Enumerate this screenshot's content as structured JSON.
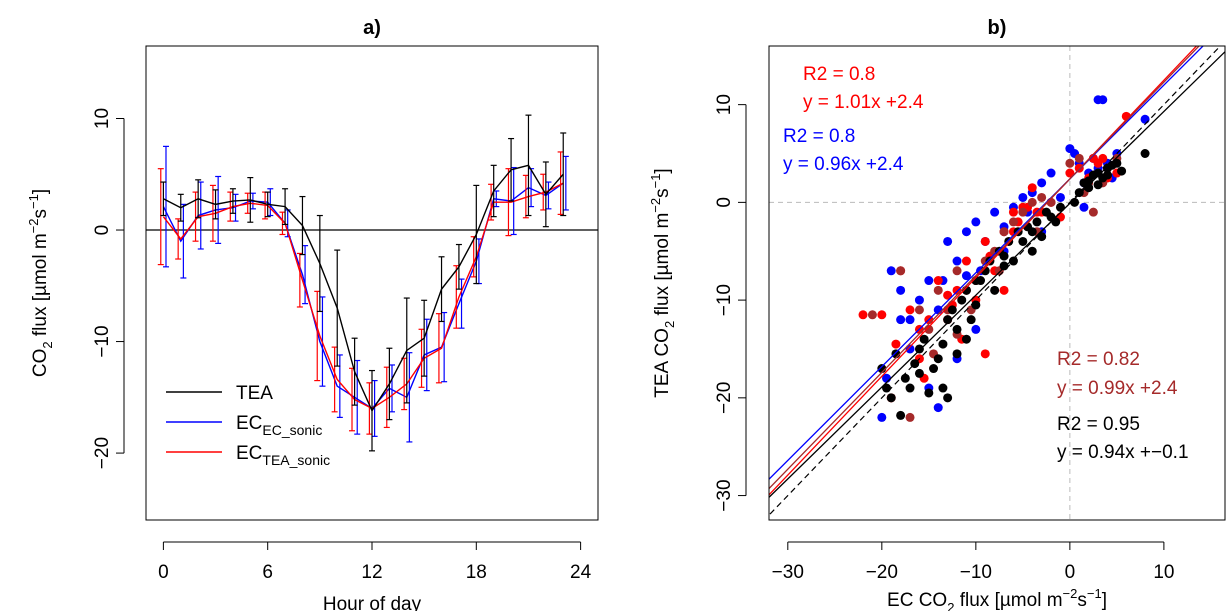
{
  "chart_data": [
    {
      "type": "line",
      "panel_label": "a)",
      "xlabel": "Hour of day",
      "ylabel": "CO2 flux [µmol m-2s-1]",
      "ylabel_parts": {
        "main": "CO",
        "sub": "2",
        "rest": " flux [µmol m",
        "sup1": "−2",
        "mid": "s",
        "sup2": "−1",
        "end": "]"
      },
      "xlim": [
        -1,
        25
      ],
      "ylim": [
        -26,
        16.5
      ],
      "x_ticks": [
        0,
        6,
        12,
        18,
        24
      ],
      "y_ticks": [
        10,
        0,
        -10,
        -20
      ],
      "x_tick_labels": [
        "0",
        "6",
        "12",
        "18",
        "24"
      ],
      "y_tick_labels": [
        "10",
        "0",
        "−10",
        "−20"
      ],
      "hline": 0,
      "legend_position": "bottom-left",
      "x": [
        0,
        1,
        2,
        3,
        4,
        5,
        6,
        7,
        8,
        9,
        10,
        11,
        12,
        13,
        14,
        15,
        16,
        17,
        18,
        19,
        20,
        21,
        22,
        23
      ],
      "series": [
        {
          "name": "TEA",
          "name_main": "TEA",
          "name_sub": "",
          "color": "#000000",
          "values": [
            2.8,
            2.0,
            2.8,
            2.3,
            2.6,
            2.7,
            2.3,
            2.1,
            0.4,
            -3.0,
            -7.0,
            -12.7,
            -16.2,
            -13.8,
            -10.8,
            -9.7,
            -5.3,
            -3.3,
            -0.4,
            3.5,
            5.4,
            5.8,
            3.2,
            5.0
          ],
          "err": [
            1.5,
            1.2,
            1.7,
            1.3,
            1.1,
            2.0,
            1.1,
            1.6,
            2.6,
            4.3,
            5.2,
            3.0,
            3.6,
            3.2,
            4.7,
            3.4,
            2.9,
            2.0,
            4.4,
            2.3,
            2.8,
            4.5,
            2.9,
            3.7
          ]
        },
        {
          "name": "EC_EC_sonic",
          "name_main": "EC",
          "name_sub": "EC_sonic",
          "color": "#0000ff",
          "values": [
            2.1,
            -1.0,
            1.3,
            1.8,
            2.0,
            2.6,
            2.5,
            0.6,
            -4.0,
            -10.0,
            -14.0,
            -15.0,
            -16.0,
            -14.2,
            -15.0,
            -11.2,
            -10.5,
            -6.6,
            -2.8,
            2.8,
            2.6,
            3.8,
            3.1,
            4.2
          ],
          "err": [
            5.4,
            3.3,
            3.0,
            3.0,
            1.2,
            0.7,
            1.2,
            1.2,
            2.6,
            4.0,
            2.8,
            3.3,
            2.5,
            2.1,
            4.0,
            3.2,
            3.1,
            2.2,
            2.0,
            0.7,
            3.0,
            1.7,
            1.2,
            2.4
          ]
        },
        {
          "name": "EC_TEA_sonic",
          "name_main": "EC",
          "name_sub": "TEA_sonic",
          "color": "#ff0000",
          "values": [
            1.2,
            -0.8,
            1.2,
            1.5,
            2.1,
            2.4,
            2.2,
            0.6,
            -4.5,
            -9.5,
            -13.4,
            -15.2,
            -16.0,
            -15.0,
            -13.8,
            -11.5,
            -10.6,
            -6.0,
            -2.4,
            2.5,
            2.5,
            3.0,
            3.4,
            4.2
          ],
          "err": [
            4.3,
            1.8,
            2.2,
            2.5,
            1.3,
            0.9,
            1.2,
            1.0,
            2.4,
            4.0,
            2.9,
            2.8,
            2.3,
            2.7,
            2.3,
            2.6,
            3.1,
            2.8,
            1.8,
            1.6,
            3.0,
            1.9,
            1.6,
            2.8
          ]
        }
      ]
    },
    {
      "type": "scatter",
      "panel_label": "b)",
      "xlabel": "EC CO2 flux [µmol m-2s-1]",
      "xlabel_parts": {
        "main": "EC CO",
        "sub": "2",
        "rest": " flux [µmol m",
        "sup1": "−2",
        "mid": "s",
        "sup2": "−1",
        "end": "]"
      },
      "ylabel": "TEA CO2 flux [µmol m-2s-1]",
      "ylabel_parts": {
        "main": "TEA CO",
        "sub": "2",
        "rest": " flux [µmol m",
        "sup1": "−2",
        "mid": "s",
        "sup2": "−1",
        "end": "]"
      },
      "xlim": [
        -32,
        16.5
      ],
      "ylim": [
        -32.5,
        16
      ],
      "x_ticks": [
        -30,
        -20,
        -10,
        0,
        10
      ],
      "y_ticks": [
        10,
        0,
        -10,
        -20,
        -30
      ],
      "x_tick_labels": [
        "−30",
        "−20",
        "−10",
        "0",
        "10"
      ],
      "y_tick_labels": [
        "10",
        "0",
        "−10",
        "−20",
        "−30"
      ],
      "reference_lines": {
        "one_to_one": true,
        "zero_lines": true
      },
      "fits": [
        {
          "color": "#ff0000",
          "r2": "R2 = 0.8",
          "equation": "y = 1.01x +2.4",
          "slope": 1.01,
          "intercept": 2.4
        },
        {
          "color": "#0000ff",
          "r2": "R2 = 0.8",
          "equation": "y = 0.96x +2.4",
          "slope": 0.96,
          "intercept": 2.4
        },
        {
          "color": "#a52a2a",
          "r2": "R2 = 0.82",
          "equation": "y = 0.99x +2.4",
          "slope": 0.99,
          "intercept": 2.4
        },
        {
          "color": "#000000",
          "r2": "R2 = 0.95",
          "equation": "y = 0.94x +−0.1",
          "slope": 0.94,
          "intercept": -0.1
        }
      ],
      "series": [
        {
          "color": "#000000",
          "points": [
            [
              -20,
              -17
            ],
            [
              -19.5,
              -19
            ],
            [
              -19,
              -20
            ],
            [
              -18,
              -21.8
            ],
            [
              -17.5,
              -18
            ],
            [
              -16.5,
              -16.5
            ],
            [
              -16,
              -15
            ],
            [
              -15.5,
              -14
            ],
            [
              -14.5,
              -17
            ],
            [
              -14,
              -16
            ],
            [
              -13.5,
              -14.5
            ],
            [
              -13,
              -12
            ],
            [
              -12.5,
              -11
            ],
            [
              -12,
              -13
            ],
            [
              -11.5,
              -10
            ],
            [
              -11,
              -9
            ],
            [
              -10.5,
              -12
            ],
            [
              -10,
              -10.5
            ],
            [
              -9.5,
              -8
            ],
            [
              -9,
              -7
            ],
            [
              -8.5,
              -6
            ],
            [
              -8,
              -9
            ],
            [
              -7.5,
              -5
            ],
            [
              -7,
              -5.5
            ],
            [
              -6.5,
              -4
            ],
            [
              -6,
              -6
            ],
            [
              -5.5,
              -3
            ],
            [
              -5,
              -4
            ],
            [
              -4.5,
              -2.5
            ],
            [
              -4,
              -3
            ],
            [
              -3.5,
              -2
            ],
            [
              -3,
              -3.5
            ],
            [
              -2,
              -1.5
            ],
            [
              -1.5,
              -2
            ],
            [
              -1,
              -0.5
            ],
            [
              0.5,
              0
            ],
            [
              1,
              1
            ],
            [
              1.5,
              2
            ],
            [
              2,
              1.5
            ],
            [
              2.5,
              2.8
            ],
            [
              3,
              3
            ],
            [
              3.5,
              2.5
            ],
            [
              4,
              3.5
            ],
            [
              4.5,
              3.8
            ],
            [
              5,
              4
            ],
            [
              5.5,
              3.2
            ],
            [
              8,
              5
            ],
            [
              -17,
              -19
            ],
            [
              -15,
              -19.5
            ],
            [
              -13,
              -20
            ],
            [
              -12,
              -15.5
            ],
            [
              -11,
              -14
            ],
            [
              -13.5,
              -19
            ],
            [
              -16,
              -17.5
            ],
            [
              -18.5,
              -15.5
            ],
            [
              -10,
              -8
            ],
            [
              -7,
              -6.5
            ],
            [
              -4,
              -5
            ],
            [
              -2.5,
              -1
            ],
            [
              2,
              2.2
            ],
            [
              3,
              1.8
            ],
            [
              4,
              2.8
            ]
          ]
        },
        {
          "color": "#0000ff",
          "points": [
            [
              -20,
              -22
            ],
            [
              -19.5,
              -18
            ],
            [
              -19,
              -7
            ],
            [
              -18,
              -12
            ],
            [
              -17,
              -15
            ],
            [
              -16,
              -10
            ],
            [
              -15,
              -8
            ],
            [
              -14,
              -11
            ],
            [
              -13,
              -4
            ],
            [
              -12,
              -6
            ],
            [
              -11,
              -7.5
            ],
            [
              -10,
              -2
            ],
            [
              -9,
              -4
            ],
            [
              -8,
              -1
            ],
            [
              -7,
              -2.5
            ],
            [
              -6,
              -0.5
            ],
            [
              -5,
              0.5
            ],
            [
              -4,
              1
            ],
            [
              -3,
              2
            ],
            [
              -2,
              3
            ],
            [
              0,
              5.5
            ],
            [
              0.5,
              5
            ],
            [
              1,
              4
            ],
            [
              1.5,
              2
            ],
            [
              2,
              3
            ],
            [
              2.5,
              4.5
            ],
            [
              3,
              10.5
            ],
            [
              3.5,
              10.5
            ],
            [
              4,
              4
            ],
            [
              5,
              5
            ],
            [
              8,
              8.5
            ],
            [
              -12,
              -16
            ],
            [
              -14,
              -21
            ],
            [
              -10,
              -13
            ],
            [
              -15,
              -19
            ],
            [
              -17,
              -12
            ],
            [
              -9.5,
              -7
            ],
            [
              -7,
              -5
            ],
            [
              -4.5,
              -1
            ],
            [
              -3,
              -3
            ],
            [
              -1,
              0.5
            ],
            [
              1.5,
              -0.5
            ],
            [
              3,
              3.5
            ],
            [
              4.5,
              2.5
            ],
            [
              -18,
              -9
            ],
            [
              -11,
              -3
            ],
            [
              -13.5,
              -8
            ]
          ]
        },
        {
          "color": "#ff0000",
          "points": [
            [
              -22,
              -11.5
            ],
            [
              -20,
              -11.5
            ],
            [
              -19,
              -20
            ],
            [
              -18,
              -7
            ],
            [
              -18.5,
              -14.5
            ],
            [
              -17,
              -11
            ],
            [
              -16,
              -13
            ],
            [
              -15,
              -12
            ],
            [
              -14,
              -8
            ],
            [
              -13,
              -12
            ],
            [
              -12,
              -9
            ],
            [
              -11,
              -6
            ],
            [
              -10,
              -10
            ],
            [
              -9,
              -4
            ],
            [
              -8,
              -7
            ],
            [
              -7,
              -3
            ],
            [
              -6,
              -1
            ],
            [
              -5,
              -0.5
            ],
            [
              -4,
              1.5
            ],
            [
              -3,
              -1
            ],
            [
              -2,
              0
            ],
            [
              0,
              3
            ],
            [
              1,
              3.5
            ],
            [
              2,
              2.5
            ],
            [
              3,
              4
            ],
            [
              3.5,
              4.5
            ],
            [
              4,
              2.5
            ],
            [
              5,
              3
            ],
            [
              6,
              8.8
            ],
            [
              -11.5,
              -14
            ],
            [
              -13,
              -9.5
            ],
            [
              -9,
              -15.5
            ],
            [
              -15.5,
              -18
            ],
            [
              -7,
              -9
            ],
            [
              -6,
              -3
            ],
            [
              -4.5,
              -0.5
            ],
            [
              -1,
              -1.5
            ],
            [
              2.5,
              4.5
            ],
            [
              -16,
              -16
            ],
            [
              -12.5,
              -10.5
            ],
            [
              -8.5,
              -5.5
            ],
            [
              -5.5,
              -2
            ],
            [
              -3.5,
              -1
            ]
          ]
        },
        {
          "color": "#a52a2a",
          "points": [
            [
              -21,
              -11.5
            ],
            [
              -18,
              -7
            ],
            [
              -17,
              -22
            ],
            [
              -16,
              -11
            ],
            [
              -15,
              -13
            ],
            [
              -14,
              -9
            ],
            [
              -13,
              -11
            ],
            [
              -12,
              -7
            ],
            [
              -11,
              -9
            ],
            [
              -10,
              -8
            ],
            [
              -9,
              -6
            ],
            [
              -8,
              -5
            ],
            [
              -7,
              -3
            ],
            [
              -6,
              -2
            ],
            [
              -5,
              -1
            ],
            [
              -4,
              0
            ],
            [
              -3,
              0.5
            ],
            [
              -2,
              0
            ],
            [
              0,
              4
            ],
            [
              1,
              4.5
            ],
            [
              2,
              2
            ],
            [
              2.5,
              -1
            ],
            [
              3,
              3
            ],
            [
              4,
              3.5
            ],
            [
              5,
              4.5
            ],
            [
              -12,
              -13.5
            ],
            [
              -14.5,
              -15.5
            ],
            [
              -10.5,
              -11
            ],
            [
              -7.5,
              -7
            ],
            [
              -3.5,
              -3
            ],
            [
              1.5,
              1
            ],
            [
              3.5,
              2
            ]
          ]
        }
      ]
    }
  ],
  "legend": {
    "items": [
      {
        "label_main": "TEA",
        "label_sub": "",
        "color": "#000000"
      },
      {
        "label_main": "EC",
        "label_sub": "EC_sonic",
        "color": "#0000ff"
      },
      {
        "label_main": "EC",
        "label_sub": "TEA_sonic",
        "color": "#ff0000"
      }
    ]
  }
}
